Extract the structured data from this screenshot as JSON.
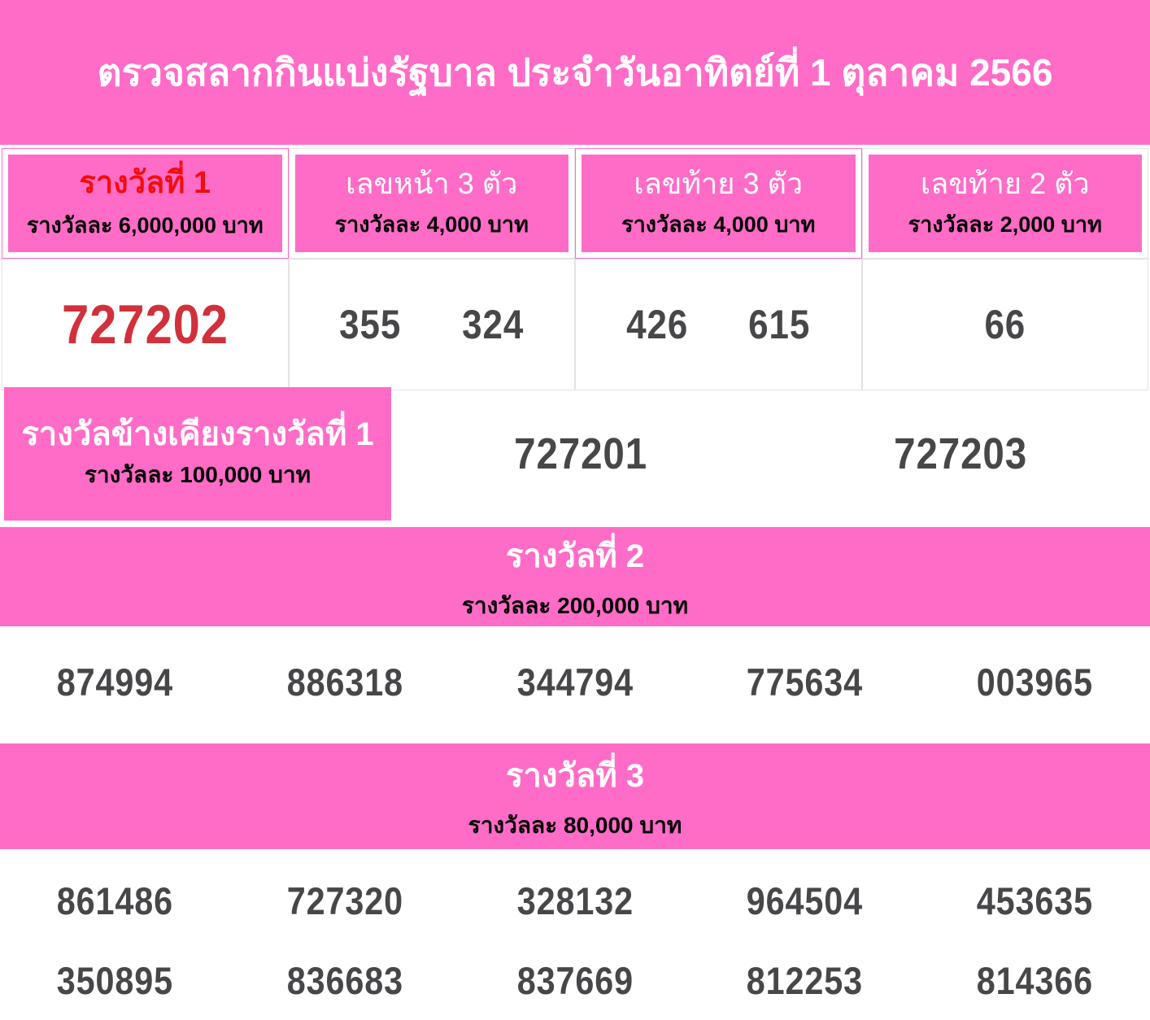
{
  "colors": {
    "pink": "#ff6cc7",
    "red_title": "#f10e0e",
    "red_number": "#d0313b",
    "number_gray": "#47474a",
    "cell_border": "#e3e3e3"
  },
  "banner": {
    "title": "ตรวจสลากกินแบ่งรัฐบาล ประจำวันอาทิตย์ที่  1  ตุลาคม  2566"
  },
  "top_table": {
    "columns": [
      {
        "title": "รางวัลที่ 1",
        "subtitle": "รางวัลละ 6,000,000 บาท",
        "values": [
          "727202"
        ]
      },
      {
        "title": "เลขหน้า 3 ตัว",
        "subtitle": "รางวัลละ 4,000 บาท",
        "values": [
          "355",
          "324"
        ]
      },
      {
        "title": "เลขท้าย 3 ตัว",
        "subtitle": "รางวัลละ 4,000 บาท",
        "values": [
          "426",
          "615"
        ]
      },
      {
        "title": "เลขท้าย 2 ตัว",
        "subtitle": "รางวัลละ 2,000 บาท",
        "values": [
          "66"
        ]
      }
    ]
  },
  "near_prize": {
    "title": "รางวัลข้างเคียงรางวัลที่ 1",
    "subtitle": "รางวัลละ 100,000 บาท",
    "values": [
      "727201",
      "727203"
    ]
  },
  "prize2": {
    "title": "รางวัลที่ 2",
    "subtitle": "รางวัลละ 200,000 บาท",
    "values": [
      "874994",
      "886318",
      "344794",
      "775634",
      "003965"
    ]
  },
  "prize3": {
    "title": "รางวัลที่ 3",
    "subtitle": "รางวัลละ 80,000 บาท",
    "values": [
      "861486",
      "727320",
      "328132",
      "964504",
      "453635",
      "350895",
      "836683",
      "837669",
      "812253",
      "814366"
    ]
  }
}
